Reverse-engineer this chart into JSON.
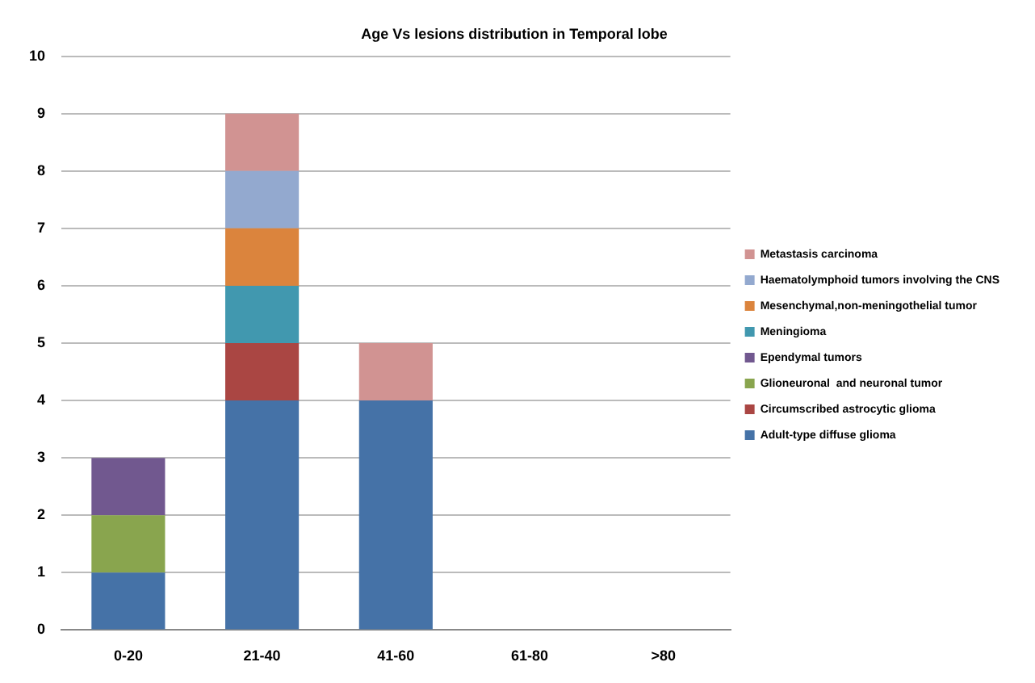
{
  "chart_data": {
    "type": "bar",
    "title": "Age Vs lesions distribution in Temporal lobe",
    "stacked": true,
    "categories": [
      "0-20",
      "21-40",
      "41-60",
      "61-80",
      ">80"
    ],
    "series": [
      {
        "name": "Adult-type diffuse glioma",
        "color": "#4572a7",
        "values": [
          1,
          4,
          4,
          0,
          0
        ]
      },
      {
        "name": "Circumscribed astrocytic glioma",
        "color": "#aa4643",
        "values": [
          0,
          1,
          0,
          0,
          0
        ]
      },
      {
        "name": "Glioneuronal  and neuronal tumor",
        "color": "#89a54e",
        "values": [
          1,
          0,
          0,
          0,
          0
        ]
      },
      {
        "name": "Ependymal tumors",
        "color": "#71588f",
        "values": [
          1,
          0,
          0,
          0,
          0
        ]
      },
      {
        "name": "Meningioma",
        "color": "#4198af",
        "values": [
          0,
          1,
          0,
          0,
          0
        ]
      },
      {
        "name": "Mesenchymal,non-meningothelial tumor",
        "color": "#db843d",
        "values": [
          0,
          1,
          0,
          0,
          0
        ]
      },
      {
        "name": "Haematolymphoid tumors involving the CNS",
        "color": "#93a9cf",
        "values": [
          0,
          1,
          0,
          0,
          0
        ]
      },
      {
        "name": "Metastasis carcinoma",
        "color": "#d19392",
        "values": [
          0,
          1,
          1,
          0,
          0
        ]
      }
    ],
    "ylim": [
      0,
      10
    ],
    "yticks": [
      0,
      1,
      2,
      3,
      4,
      5,
      6,
      7,
      8,
      9,
      10
    ],
    "grid": "y",
    "legend": "right"
  }
}
